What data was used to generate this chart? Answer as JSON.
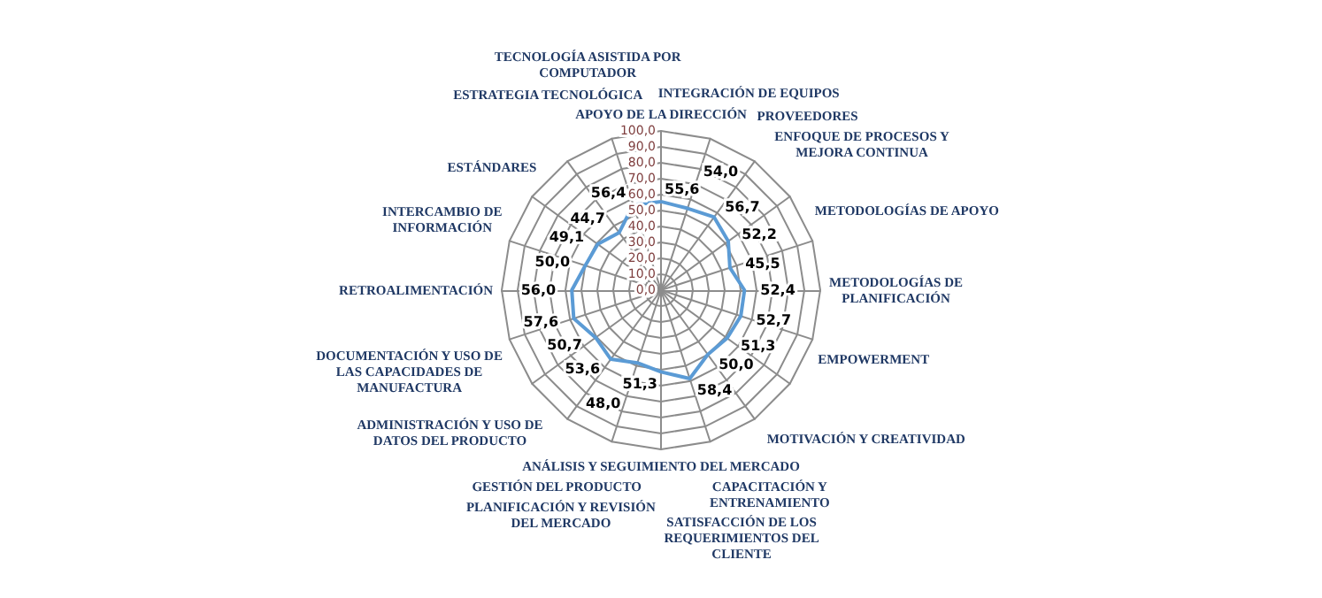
{
  "chart_data": {
    "type": "radar",
    "categories": [
      "APOYO DE LA DIRECCIÓN",
      "INTEGRACIÓN DE EQUIPOS",
      "PROVEEDORES",
      "ENFOQUE DE PROCESOS Y MEJORA CONTINUA",
      "METODOLOGÍAS DE APOYO",
      "METODOLOGÍAS DE PLANIFICACIÓN",
      "EMPOWERMENT",
      "MOTIVACIÓN Y CREATIVIDAD",
      "CAPACITACIÓN Y ENTRENAMIENTO",
      "SATISFACCIÓN DE LOS REQUERIMIENTOS DEL CLIENTE",
      "ANÁLISIS Y SEGUIMIENTO DEL MERCADO",
      "PLANIFICACIÓN Y REVISIÓN DEL MERCADO",
      "GESTIÓN DEL PRODUCTO",
      "ADMINISTRACIÓN Y USO DE DATOS DEL PRODUCTO",
      "DOCUMENTACIÓN Y USO DE LAS CAPACIDADES DE MANUFACTURA",
      "RETROALIMENTACIÓN",
      "INTERCAMBIO DE INFORMACIÓN",
      "ESTÁNDARES",
      "ESTRATEGIA TECNOLÓGICA",
      "TECNOLOGÍA ASISTIDA POR COMPUTADOR"
    ],
    "series": [
      {
        "color": "#5b9bd5",
        "values": [
          55.6,
          54.0,
          56.7,
          52.2,
          45.5,
          52.4,
          52.7,
          51.3,
          50.0,
          58.4,
          51.3,
          48.0,
          53.6,
          50.7,
          57.6,
          56.0,
          50.0,
          49.1,
          44.7,
          56.4
        ],
        "value_labels": [
          "55,6",
          "54,0",
          "56,7",
          "52,2",
          "45,5",
          "52,4",
          "52,7",
          "51,3",
          "50,0",
          "58,4",
          "51,3",
          "48,0",
          "53,6",
          "50,7",
          "57,6",
          "56,0",
          "50,0",
          "49,1",
          "44,7",
          "56,4"
        ]
      }
    ],
    "ylim": [
      0,
      100
    ],
    "yticks": [
      {
        "value": 0,
        "label": "0,0"
      },
      {
        "value": 10,
        "label": "10,0"
      },
      {
        "value": 20,
        "label": "20,0"
      },
      {
        "value": 30,
        "label": "30,0"
      },
      {
        "value": 40,
        "label": "40,0"
      },
      {
        "value": 50,
        "label": "50,0"
      },
      {
        "value": 60,
        "label": "60,0"
      },
      {
        "value": 70,
        "label": "70,0"
      },
      {
        "value": 80,
        "label": "80,0"
      },
      {
        "value": 90,
        "label": "90,0"
      },
      {
        "value": 100,
        "label": "100,0"
      }
    ],
    "grid": true,
    "marker": "none",
    "line_style": "solid"
  }
}
